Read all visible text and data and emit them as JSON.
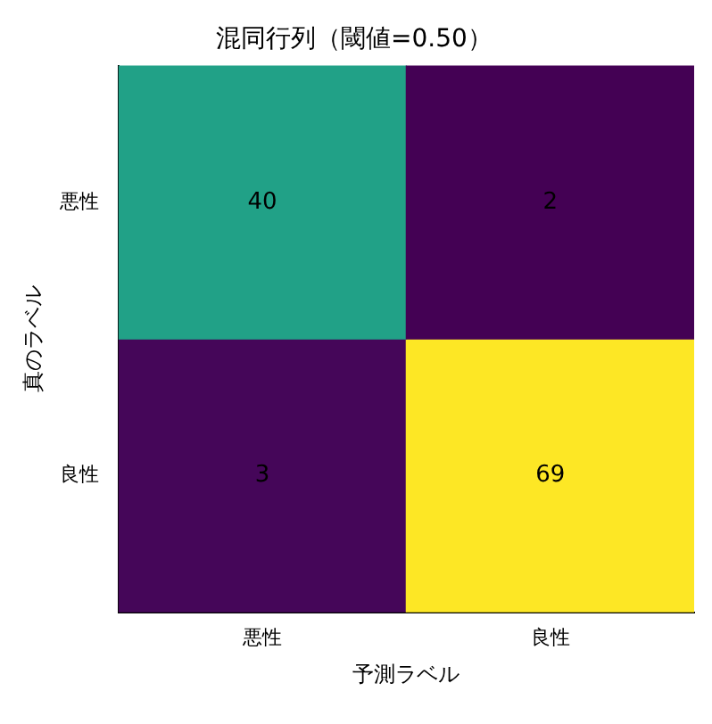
{
  "chart_data": {
    "type": "heatmap",
    "title": "混同行列（閾値=0.50）",
    "xlabel": "予測ラベル",
    "ylabel": "真のラベル",
    "categories": [
      "悪性",
      "良性"
    ],
    "y_categories": [
      "悪性",
      "良性"
    ],
    "cells": [
      [
        40,
        2
      ],
      [
        3,
        69
      ]
    ],
    "data_labels": true
  }
}
